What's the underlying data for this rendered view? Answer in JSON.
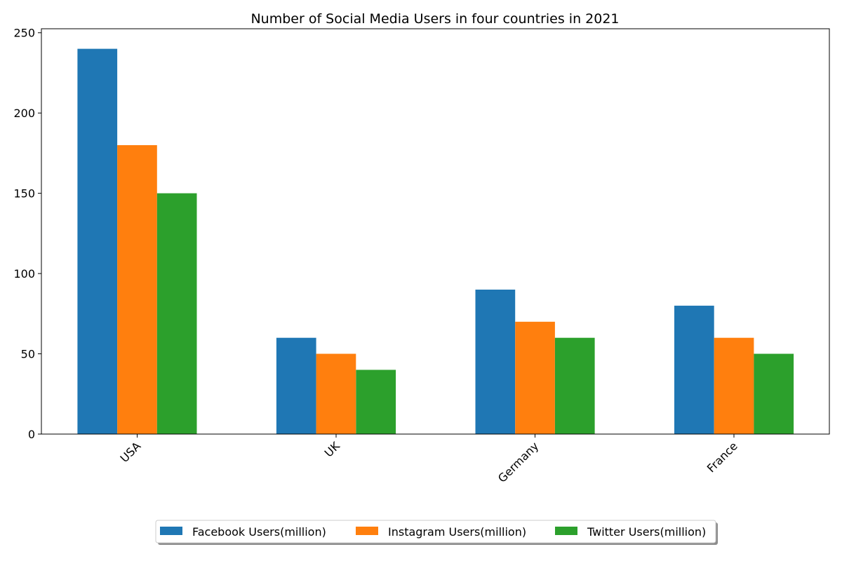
{
  "chart_data": {
    "type": "bar",
    "title": "Number of Social Media Users in four countries in 2021",
    "xlabel": "",
    "ylabel": "",
    "categories": [
      "USA",
      "UK",
      "Germany",
      "France"
    ],
    "series": [
      {
        "name": "Facebook Users(million)",
        "values": [
          240,
          60,
          90,
          80
        ],
        "color": "#1f77b4"
      },
      {
        "name": "Instagram Users(million)",
        "values": [
          180,
          50,
          70,
          60
        ],
        "color": "#ff7f0e"
      },
      {
        "name": "Twitter Users(million)",
        "values": [
          150,
          40,
          60,
          50
        ],
        "color": "#2ca02c"
      }
    ],
    "ylim": [
      0,
      252.5
    ],
    "yticks": [
      0,
      50,
      100,
      150,
      200,
      250
    ],
    "grid": false,
    "legend_position": "bottom-center"
  }
}
